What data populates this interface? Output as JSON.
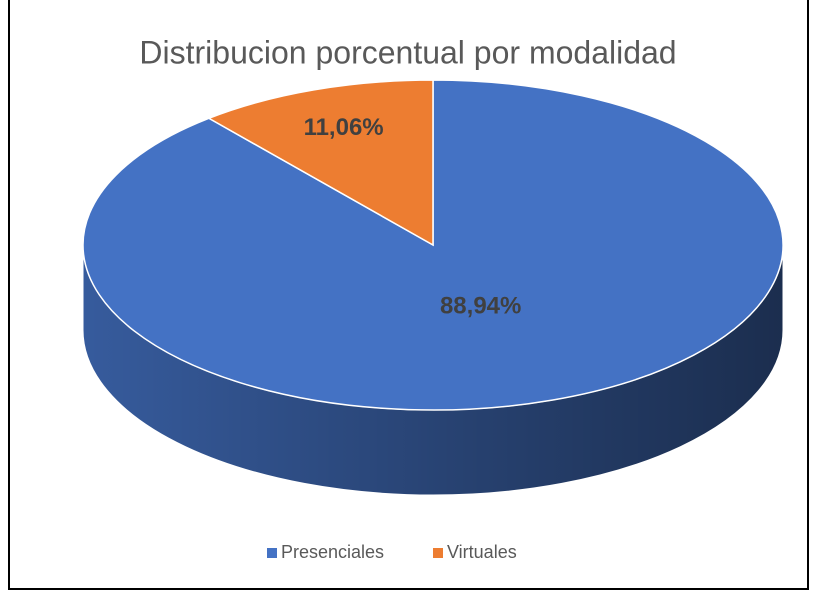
{
  "chart_data": {
    "type": "pie",
    "title": "Distribucion porcentual por modalidad",
    "categories": [
      "Presenciales",
      "Virtuales"
    ],
    "values": [
      88.94,
      11.06
    ],
    "value_labels": [
      "88,94%",
      "11,06%"
    ],
    "colors": [
      "#4472c4",
      "#ed7d31"
    ],
    "three_d": true,
    "legend": "bottom"
  }
}
